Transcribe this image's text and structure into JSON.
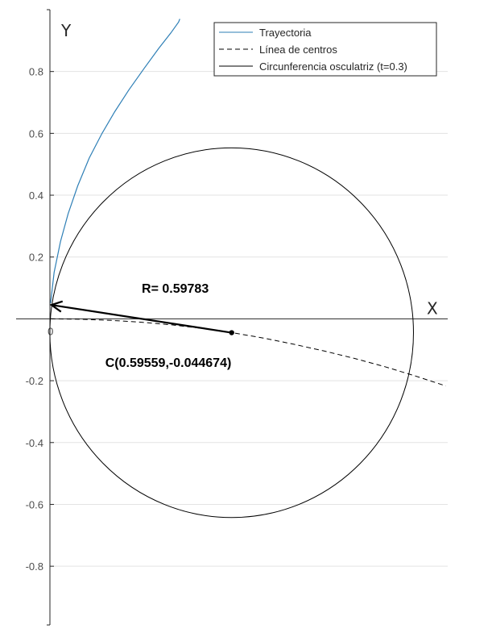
{
  "chart_data": {
    "type": "line",
    "title": "",
    "xlabel": "X",
    "ylabel": "Y",
    "xlim": [
      -0.002,
      1.306
    ],
    "ylim": [
      -0.99,
      1.0
    ],
    "grid": "horizontal",
    "legend_position": "top-right",
    "y_ticks": [
      0.8,
      0.6,
      0.4,
      0.2,
      0,
      -0.2,
      -0.4,
      -0.6,
      -0.8
    ],
    "y_tick_labels": [
      "0.8",
      "0.6",
      "0.4",
      "0.2",
      "0",
      "-0.2",
      "-0.4",
      "-0.6",
      "-0.8"
    ],
    "colors": {
      "trajectory": "#2e7fb6",
      "centers": "#000000",
      "circle": "#000000",
      "arrow": "#000000",
      "grid": "#e3e3e3"
    },
    "series": [
      {
        "name": "Trayectoria",
        "style": "solid",
        "x": [
          0,
          0.0118,
          0.0327,
          0.0579,
          0.0894,
          0.1272,
          0.1692,
          0.2112,
          0.2573,
          0.3077,
          0.356,
          0.3957,
          0.421,
          0.425
        ],
        "y": [
          0.05,
          0.15,
          0.25,
          0.34,
          0.43,
          0.52,
          0.6,
          0.67,
          0.74,
          0.81,
          0.875,
          0.925,
          0.96,
          0.97
        ]
      },
      {
        "name": "Línea de centros",
        "style": "dashed",
        "x": [
          0,
          0.1,
          0.2,
          0.3,
          0.4,
          0.5,
          0.6,
          0.7,
          0.8,
          0.9,
          1.0,
          1.1,
          1.2,
          1.3
        ],
        "y": [
          0,
          -0.0013,
          -0.005,
          -0.011,
          -0.0195,
          -0.031,
          -0.045,
          -0.062,
          -0.082,
          -0.104,
          -0.128,
          -0.155,
          -0.185,
          -0.217
        ]
      },
      {
        "name": "Circunferencia osculatriz (t=0.3)",
        "style": "solid",
        "center": [
          0.59559,
          -0.044674
        ],
        "radius": 0.59783
      }
    ],
    "arrow": {
      "from": [
        0.59559,
        -0.044674
      ],
      "to": [
        0.003,
        0.045
      ]
    },
    "center_point": [
      0.59559,
      -0.044674
    ],
    "annotations": {
      "radius_label": "R= 0.59783",
      "radius_label_at": [
        0.3,
        0.085
      ],
      "center_label": "C(0.59559,-0.044674)",
      "center_label_at": [
        0.18,
        -0.155
      ]
    },
    "origin_label": "0"
  }
}
